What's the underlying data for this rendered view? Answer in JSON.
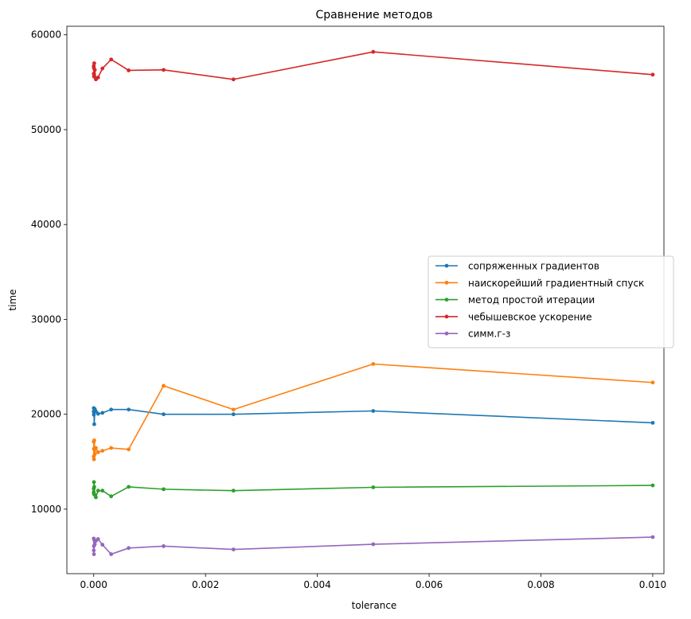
{
  "chart_data": {
    "type": "line",
    "title": "Сравнение методов",
    "xlabel": "tolerance",
    "ylabel": "time",
    "xlim": [
      -0.00048,
      0.0102
    ],
    "ylim": [
      3200,
      60900
    ],
    "grid": false,
    "legend_position": "center-right",
    "xticks": [
      {
        "value": 0.0,
        "label": "0.000"
      },
      {
        "value": 0.002,
        "label": "0.002"
      },
      {
        "value": 0.004,
        "label": "0.004"
      },
      {
        "value": 0.006,
        "label": "0.006"
      },
      {
        "value": 0.008,
        "label": "0.008"
      },
      {
        "value": 0.01,
        "label": "0.010"
      }
    ],
    "yticks": [
      {
        "value": 10000,
        "label": "10000"
      },
      {
        "value": 20000,
        "label": "20000"
      },
      {
        "value": 30000,
        "label": "30000"
      },
      {
        "value": 40000,
        "label": "40000"
      },
      {
        "value": 50000,
        "label": "50000"
      },
      {
        "value": 60000,
        "label": "60000"
      }
    ],
    "x": [
      0.01,
      0.005,
      0.0025,
      0.00125,
      0.000625,
      0.0003125,
      0.00015625,
      7.8125e-05,
      3.90625e-05,
      1.953125e-05,
      9.765625e-06,
      4.8828125e-06,
      2.44140625e-06,
      1.220703125e-06,
      6.103515625e-07
    ],
    "series": [
      {
        "name": "сопряженных градиентов",
        "color": "#1f77b4",
        "values": [
          19100,
          20350,
          20000,
          20000,
          20500,
          20500,
          20150,
          20050,
          20300,
          20550,
          18950,
          20200,
          19950,
          20650,
          20300
        ]
      },
      {
        "name": "наискорейший градиентный спуск",
        "color": "#ff7f0e",
        "values": [
          23350,
          25300,
          20500,
          23000,
          16300,
          16450,
          16150,
          16000,
          16450,
          15800,
          17250,
          15250,
          16350,
          17100,
          15550
        ]
      },
      {
        "name": "метод простой итерации",
        "color": "#2ca02c",
        "values": [
          12500,
          12300,
          11950,
          12100,
          12350,
          11350,
          11950,
          11950,
          11250,
          11500,
          12350,
          12850,
          11600,
          11800,
          12150
        ]
      },
      {
        "name": "чебышевское ускорение",
        "color": "#d62728",
        "values": [
          55800,
          58200,
          55300,
          56300,
          56250,
          57400,
          56450,
          55500,
          55300,
          56300,
          57000,
          55600,
          56500,
          55900,
          56700
        ]
      },
      {
        "name": "симм.г-з",
        "color": "#9467bd",
        "values": [
          7050,
          6300,
          5750,
          6100,
          5900,
          5250,
          6250,
          6850,
          6650,
          6300,
          6750,
          5250,
          6100,
          5650,
          6900
        ]
      }
    ]
  }
}
